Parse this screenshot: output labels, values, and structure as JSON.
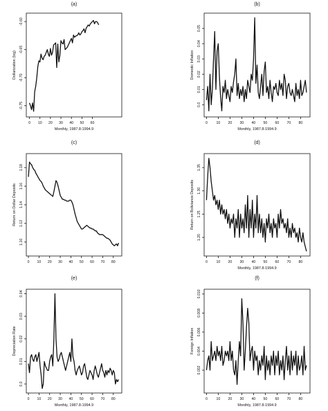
{
  "chart_data": [
    {
      "panel": "(a)",
      "type": "line",
      "xlabel": "Monthly, 1987.8-1994.9",
      "ylabel": "Dollarization (log)",
      "xlim": [
        -3,
        88
      ],
      "ylim": [
        -0.77,
        -0.585
      ],
      "xticks": [
        0,
        10,
        20,
        30,
        40,
        50,
        60
      ],
      "xtick_labels": [
        "0",
        "10",
        "20",
        "30",
        "40",
        "50",
        "60"
      ],
      "yticks": [
        -0.75,
        -0.7,
        -0.65,
        -0.6
      ],
      "ytick_labels": [
        "-0.75",
        "-0.70",
        "-0.65",
        "-0.60"
      ],
      "x": [
        0,
        1,
        2,
        3,
        4,
        5,
        6,
        7,
        8,
        9,
        10,
        11,
        12,
        13,
        14,
        15,
        16,
        17,
        18,
        19,
        20,
        21,
        22,
        23,
        24,
        25,
        26,
        27,
        28,
        29,
        30,
        31,
        32,
        33,
        34,
        35,
        36,
        37,
        38,
        39,
        40,
        41,
        42,
        43,
        44,
        45,
        46,
        47,
        48,
        49,
        50,
        51,
        52,
        53,
        54,
        55,
        56,
        57,
        58,
        59,
        60,
        61,
        62,
        63,
        64,
        65,
        66
      ],
      "y": [
        -0.745,
        -0.75,
        -0.757,
        -0.745,
        -0.76,
        -0.725,
        -0.715,
        -0.7,
        -0.68,
        -0.67,
        -0.672,
        -0.658,
        -0.665,
        -0.668,
        -0.662,
        -0.66,
        -0.655,
        -0.65,
        -0.658,
        -0.662,
        -0.648,
        -0.66,
        -0.655,
        -0.642,
        -0.64,
        -0.638,
        -0.682,
        -0.64,
        -0.672,
        -0.66,
        -0.634,
        -0.638,
        -0.64,
        -0.632,
        -0.65,
        -0.648,
        -0.646,
        -0.642,
        -0.638,
        -0.634,
        -0.63,
        -0.638,
        -0.624,
        -0.628,
        -0.626,
        -0.625,
        -0.624,
        -0.62,
        -0.624,
        -0.622,
        -0.618,
        -0.616,
        -0.613,
        -0.62,
        -0.612,
        -0.609,
        -0.606,
        -0.608,
        -0.604,
        -0.602,
        -0.6,
        -0.598,
        -0.604,
        -0.6,
        -0.6,
        -0.602,
        -0.606
      ]
    },
    {
      "panel": "(b)",
      "type": "line",
      "xlabel": "Monthly, 1987.8-1994.9",
      "ylabel": "Domestic Inflation",
      "xlim": [
        -2,
        88
      ],
      "ylim": [
        -0.008,
        0.06
      ],
      "xticks": [
        0,
        10,
        20,
        30,
        40,
        50,
        60,
        70,
        80
      ],
      "xtick_labels": [
        "0",
        "10",
        "20",
        "30",
        "40",
        "50",
        "60",
        "70",
        "80"
      ],
      "yticks": [
        0.0,
        0.01,
        0.02,
        0.03,
        0.04,
        0.05
      ],
      "ytick_labels": [
        "0.0",
        "0.01",
        "0.02",
        "0.03",
        "0.04",
        "0.05"
      ],
      "x": [
        0,
        1,
        2,
        3,
        4,
        5,
        6,
        7,
        8,
        9,
        10,
        11,
        12,
        13,
        14,
        15,
        16,
        17,
        18,
        19,
        20,
        21,
        22,
        23,
        24,
        25,
        26,
        27,
        28,
        29,
        30,
        31,
        32,
        33,
        34,
        35,
        36,
        37,
        38,
        39,
        40,
        41,
        42,
        43,
        44,
        45,
        46,
        47,
        48,
        49,
        50,
        51,
        52,
        53,
        54,
        55,
        56,
        57,
        58,
        59,
        60,
        61,
        62,
        63,
        64,
        65,
        66,
        67,
        68,
        69,
        70,
        71,
        72,
        73,
        74,
        75,
        76,
        77,
        78,
        79,
        80,
        81,
        82,
        83,
        84,
        85
      ],
      "y": [
        0.003,
        0.012,
        -0.004,
        0.02,
        0.0,
        0.01,
        0.03,
        0.048,
        0.01,
        0.035,
        0.04,
        0.018,
        0.005,
        -0.004,
        0.012,
        0.008,
        0.016,
        0.004,
        0.01,
        0.006,
        0.002,
        0.012,
        0.008,
        0.015,
        0.02,
        0.03,
        0.006,
        0.014,
        0.004,
        0.01,
        0.006,
        0.012,
        0.002,
        0.01,
        0.004,
        0.016,
        0.012,
        0.008,
        0.02,
        0.016,
        0.03,
        0.057,
        0.014,
        0.026,
        0.008,
        0.004,
        0.012,
        0.02,
        0.006,
        0.022,
        0.028,
        0.008,
        0.012,
        0.004,
        0.016,
        0.008,
        0.002,
        0.012,
        0.01,
        0.014,
        0.008,
        0.006,
        0.016,
        0.01,
        0.014,
        0.006,
        0.02,
        0.016,
        0.004,
        0.012,
        0.014,
        0.008,
        0.006,
        0.01,
        0.006,
        0.002,
        0.014,
        0.006,
        0.01,
        0.004,
        0.016,
        0.006,
        0.008,
        0.012,
        0.016,
        0.008
      ]
    },
    {
      "panel": "(c)",
      "type": "line",
      "xlabel": "",
      "ylabel": "Return on Dollar Deposits",
      "xlim": [
        -2,
        88
      ],
      "ylim": [
        1.085,
        1.195
      ],
      "xticks": [
        0,
        10,
        20,
        30,
        40,
        50,
        60,
        70,
        80
      ],
      "xtick_labels": [
        "0",
        "10",
        "20",
        "30",
        "40",
        "50",
        "60",
        "70",
        "80"
      ],
      "yticks": [
        1.1,
        1.12,
        1.14,
        1.16,
        1.18
      ],
      "ytick_labels": [
        "1.10",
        "1.12",
        "1.14",
        "1.16",
        "1.18"
      ],
      "x": [
        0,
        1,
        2,
        3,
        4,
        5,
        6,
        7,
        8,
        9,
        10,
        11,
        12,
        13,
        14,
        15,
        16,
        17,
        18,
        19,
        20,
        21,
        22,
        23,
        24,
        25,
        26,
        27,
        28,
        29,
        30,
        31,
        32,
        33,
        34,
        35,
        36,
        37,
        38,
        39,
        40,
        41,
        42,
        43,
        44,
        45,
        46,
        47,
        48,
        49,
        50,
        51,
        52,
        53,
        54,
        55,
        56,
        57,
        58,
        59,
        60,
        61,
        62,
        63,
        64,
        65,
        66,
        67,
        68,
        69,
        70,
        71,
        72,
        73,
        74,
        75,
        76,
        77,
        78,
        79,
        80,
        81,
        82,
        83,
        84,
        85
      ],
      "y": [
        1.17,
        1.186,
        1.184,
        1.183,
        1.18,
        1.178,
        1.177,
        1.174,
        1.172,
        1.17,
        1.168,
        1.166,
        1.165,
        1.163,
        1.16,
        1.158,
        1.156,
        1.155,
        1.154,
        1.153,
        1.152,
        1.151,
        1.15,
        1.149,
        1.154,
        1.16,
        1.166,
        1.164,
        1.16,
        1.155,
        1.15,
        1.148,
        1.146,
        1.146,
        1.145,
        1.145,
        1.144,
        1.144,
        1.144,
        1.145,
        1.145,
        1.143,
        1.14,
        1.135,
        1.13,
        1.126,
        1.122,
        1.12,
        1.118,
        1.116,
        1.114,
        1.114,
        1.115,
        1.116,
        1.117,
        1.118,
        1.117,
        1.116,
        1.115,
        1.115,
        1.114,
        1.114,
        1.113,
        1.112,
        1.112,
        1.11,
        1.109,
        1.108,
        1.108,
        1.108,
        1.108,
        1.107,
        1.106,
        1.105,
        1.104,
        1.104,
        1.103,
        1.102,
        1.1,
        1.098,
        1.097,
        1.096,
        1.097,
        1.098,
        1.096,
        1.099
      ]
    },
    {
      "panel": "(d)",
      "type": "line",
      "xlabel": "Monthly, 1987.8-1994.9",
      "ylabel": "Return on Bolivianos Deposits",
      "xlim": [
        -2,
        88
      ],
      "ylim": [
        1.16,
        1.38
      ],
      "xticks": [
        0,
        10,
        20,
        30,
        40,
        50,
        60,
        70,
        80
      ],
      "xtick_labels": [
        "0",
        "10",
        "20",
        "30",
        "40",
        "50",
        "60",
        "70",
        "80"
      ],
      "yticks": [
        1.2,
        1.25,
        1.3,
        1.35
      ],
      "ytick_labels": [
        "1.20",
        "1.25",
        "1.30",
        "1.35"
      ],
      "x": [
        0,
        1,
        2,
        3,
        4,
        5,
        6,
        7,
        8,
        9,
        10,
        11,
        12,
        13,
        14,
        15,
        16,
        17,
        18,
        19,
        20,
        21,
        22,
        23,
        24,
        25,
        26,
        27,
        28,
        29,
        30,
        31,
        32,
        33,
        34,
        35,
        36,
        37,
        38,
        39,
        40,
        41,
        42,
        43,
        44,
        45,
        46,
        47,
        48,
        49,
        50,
        51,
        52,
        53,
        54,
        55,
        56,
        57,
        58,
        59,
        60,
        61,
        62,
        63,
        64,
        65,
        66,
        67,
        68,
        69,
        70,
        71,
        72,
        73,
        74,
        75,
        76,
        77,
        78,
        79,
        80,
        81,
        82,
        83,
        84,
        85
      ],
      "y": [
        1.28,
        1.33,
        1.37,
        1.35,
        1.32,
        1.3,
        1.28,
        1.29,
        1.27,
        1.28,
        1.26,
        1.28,
        1.25,
        1.27,
        1.25,
        1.26,
        1.24,
        1.26,
        1.23,
        1.25,
        1.22,
        1.24,
        1.23,
        1.25,
        1.2,
        1.24,
        1.22,
        1.26,
        1.2,
        1.25,
        1.22,
        1.24,
        1.21,
        1.27,
        1.22,
        1.29,
        1.2,
        1.26,
        1.22,
        1.28,
        1.2,
        1.25,
        1.22,
        1.29,
        1.21,
        1.25,
        1.21,
        1.24,
        1.2,
        1.23,
        1.19,
        1.24,
        1.22,
        1.25,
        1.21,
        1.23,
        1.2,
        1.24,
        1.22,
        1.23,
        1.2,
        1.25,
        1.22,
        1.26,
        1.23,
        1.24,
        1.22,
        1.23,
        1.21,
        1.24,
        1.2,
        1.22,
        1.2,
        1.23,
        1.21,
        1.22,
        1.2,
        1.21,
        1.19,
        1.22,
        1.2,
        1.19,
        1.21,
        1.19,
        1.18,
        1.17
      ]
    },
    {
      "panel": "(e)",
      "type": "line",
      "xlabel": "Monthly, 1987.8-1994.9",
      "ylabel": "Depreciation Rate",
      "xlim": [
        -2,
        88
      ],
      "ylim": [
        -0.004,
        0.042
      ],
      "xticks": [
        0,
        10,
        20,
        30,
        40,
        50,
        60,
        70,
        80
      ],
      "xtick_labels": [
        "0",
        "10",
        "20",
        "30",
        "40",
        "50",
        "60",
        "70",
        "80"
      ],
      "yticks": [
        0.0,
        0.01,
        0.02,
        0.03,
        0.04
      ],
      "ytick_labels": [
        "0.0",
        "0.01",
        "0.02",
        "0.03",
        "0.04"
      ],
      "x": [
        0,
        1,
        2,
        3,
        4,
        5,
        6,
        7,
        8,
        9,
        10,
        11,
        12,
        13,
        14,
        15,
        16,
        17,
        18,
        19,
        20,
        21,
        22,
        23,
        24,
        25,
        26,
        27,
        28,
        29,
        30,
        31,
        32,
        33,
        34,
        35,
        36,
        37,
        38,
        39,
        40,
        41,
        42,
        43,
        44,
        45,
        46,
        47,
        48,
        49,
        50,
        51,
        52,
        53,
        54,
        55,
        56,
        57,
        58,
        59,
        60,
        61,
        62,
        63,
        64,
        65,
        66,
        67,
        68,
        69,
        70,
        71,
        72,
        73,
        74,
        75,
        76,
        77,
        78,
        79,
        80,
        81,
        82,
        83,
        84,
        85
      ],
      "y": [
        0.009,
        0.005,
        0.012,
        0.013,
        0.011,
        0.01,
        0.012,
        0.013,
        0.01,
        0.012,
        0.014,
        0.008,
        0.004,
        -0.002,
        0.0,
        0.01,
        0.008,
        0.007,
        0.006,
        0.006,
        0.01,
        0.012,
        0.013,
        0.008,
        0.02,
        0.04,
        0.02,
        0.012,
        0.01,
        0.011,
        0.013,
        0.014,
        0.012,
        0.01,
        0.008,
        0.006,
        0.008,
        0.01,
        0.012,
        0.014,
        0.01,
        0.02,
        0.012,
        0.01,
        0.006,
        0.004,
        0.006,
        0.007,
        0.008,
        0.006,
        0.004,
        0.005,
        0.008,
        0.009,
        0.006,
        0.003,
        0.002,
        0.004,
        0.006,
        0.005,
        0.004,
        0.002,
        0.006,
        0.008,
        0.006,
        0.004,
        0.003,
        0.005,
        0.007,
        0.009,
        0.006,
        0.005,
        0.003,
        0.006,
        0.004,
        0.006,
        0.005,
        0.007,
        0.006,
        0.004,
        0.006,
        0.005,
        0.0,
        0.002,
        0.001,
        0.002
      ]
    },
    {
      "panel": "(f)",
      "type": "line",
      "xlabel": "Monthly, 1987.8-1994.9",
      "ylabel": "Foreign Inflation",
      "xlim": [
        -2,
        88
      ],
      "ylim": [
        -0.0004,
        0.0105
      ],
      "xticks": [
        0,
        10,
        20,
        30,
        40,
        50,
        60,
        70,
        80
      ],
      "xtick_labels": [
        "0",
        "10",
        "20",
        "30",
        "40",
        "50",
        "60",
        "70",
        "80"
      ],
      "yticks": [
        0.002,
        0.004,
        0.006,
        0.008,
        0.01
      ],
      "ytick_labels": [
        "0.002",
        "0.004",
        "0.006",
        "0.008",
        "0.010"
      ],
      "x": [
        0,
        1,
        2,
        3,
        4,
        5,
        6,
        7,
        8,
        9,
        10,
        11,
        12,
        13,
        14,
        15,
        16,
        17,
        18,
        19,
        20,
        21,
        22,
        23,
        24,
        25,
        26,
        27,
        28,
        29,
        30,
        31,
        32,
        33,
        34,
        35,
        36,
        37,
        38,
        39,
        40,
        41,
        42,
        43,
        44,
        45,
        46,
        47,
        48,
        49,
        50,
        51,
        52,
        53,
        54,
        55,
        56,
        57,
        58,
        59,
        60,
        61,
        62,
        63,
        64,
        65,
        66,
        67,
        68,
        69,
        70,
        71,
        72,
        73,
        74,
        75,
        76,
        77,
        78,
        79,
        80,
        81,
        82,
        83,
        84,
        85
      ],
      "y": [
        0.002,
        0.003,
        0.0035,
        0.002,
        0.005,
        0.003,
        0.0035,
        0.004,
        0.003,
        0.0045,
        0.0035,
        0.004,
        0.003,
        0.0045,
        0.0025,
        0.003,
        0.004,
        0.0035,
        0.004,
        0.003,
        0.005,
        0.003,
        0.004,
        0.002,
        0.0015,
        0.003,
        0.0005,
        0.003,
        0.005,
        0.0035,
        0.0095,
        0.007,
        0.002,
        0.004,
        0.0065,
        0.0085,
        0.007,
        0.003,
        0.004,
        0.0045,
        0.002,
        0.004,
        0.003,
        0.0035,
        0.0015,
        0.003,
        0.002,
        0.0035,
        0.0025,
        0.0045,
        0.001,
        0.0035,
        0.002,
        0.003,
        0.0015,
        0.0035,
        0.0025,
        0.004,
        0.0015,
        0.0035,
        0.0025,
        0.004,
        0.0015,
        0.003,
        0.002,
        0.0035,
        0.001,
        0.003,
        0.0045,
        0.002,
        0.0035,
        0.0015,
        0.004,
        0.002,
        0.0035,
        0.0025,
        0.004,
        0.0015,
        0.0035,
        0.002,
        0.0025,
        0.0035,
        0.0015,
        0.0045,
        0.002,
        0.0025
      ]
    }
  ]
}
